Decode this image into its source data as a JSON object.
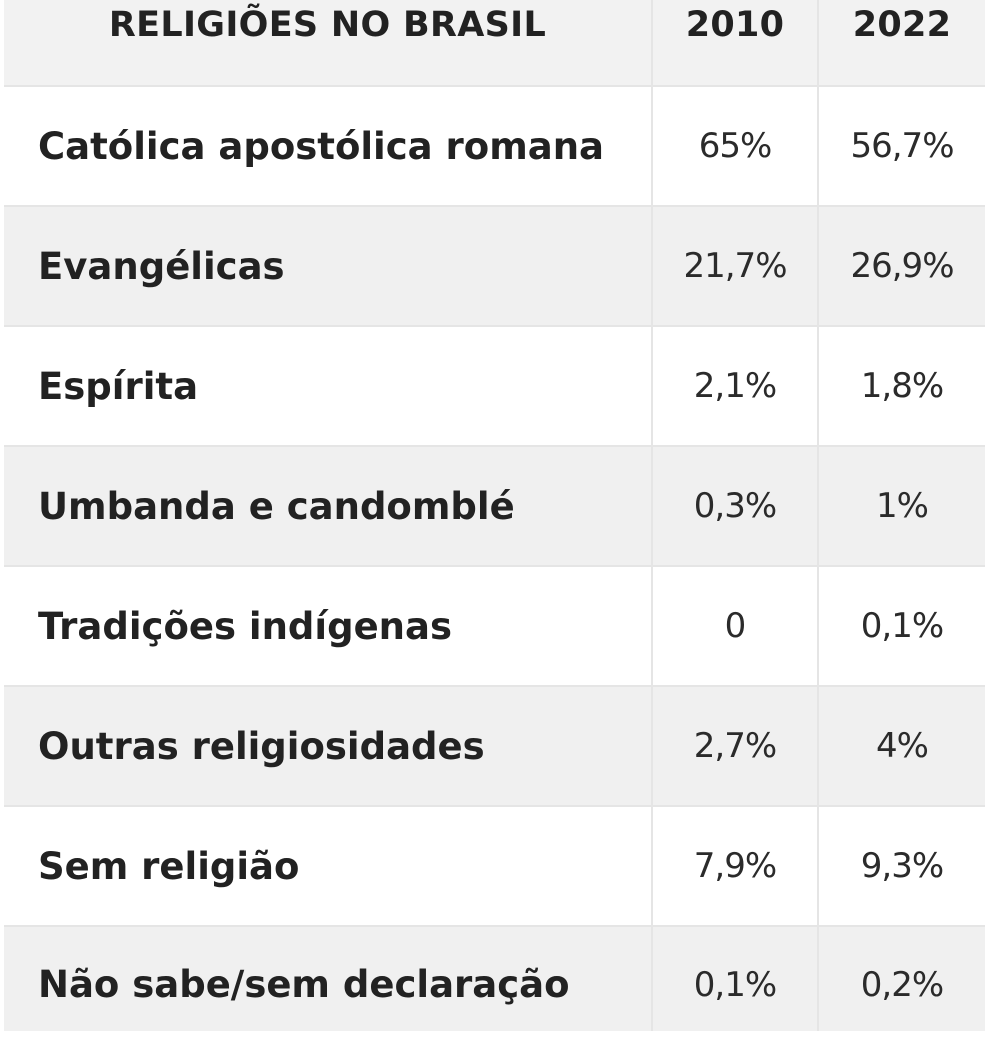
{
  "chart_data": {
    "type": "table",
    "title": "",
    "header": [
      "RELIGIÕES NO BRASIL",
      "2010",
      "2022"
    ],
    "rows": [
      {
        "name": "Católica apostólica romana",
        "v2010": "65%",
        "v2022": "56,7%"
      },
      {
        "name": "Evangélicas",
        "v2010": "21,7%",
        "v2022": "26,9%"
      },
      {
        "name": "Espírita",
        "v2010": "2,1%",
        "v2022": "1,8%"
      },
      {
        "name": "Umbanda e candomblé",
        "v2010": "0,3%",
        "v2022": "1%"
      },
      {
        "name": "Tradições indígenas",
        "v2010": "0",
        "v2022": "0,1%"
      },
      {
        "name": "Outras religiosidades",
        "v2010": "2,7%",
        "v2022": "4%"
      },
      {
        "name": "Sem religião",
        "v2010": "7,9%",
        "v2022": "9,3%"
      },
      {
        "name": "Não sabe/sem declaração",
        "v2010": "0,1%",
        "v2022": "0,2%"
      }
    ],
    "values_2010": [
      65,
      21.7,
      2.1,
      0.3,
      0,
      2.7,
      7.9,
      0.1
    ],
    "values_2022": [
      56.7,
      26.9,
      1.8,
      1,
      0.1,
      4,
      9.3,
      0.2
    ],
    "unit": "%"
  },
  "colors": {
    "header_bg": "#f2f2f2",
    "shaded_row_bg": "#f0f0f0",
    "row_bg": "#ffffff",
    "grid_line": "#e5e5e5",
    "text": "#222222"
  }
}
